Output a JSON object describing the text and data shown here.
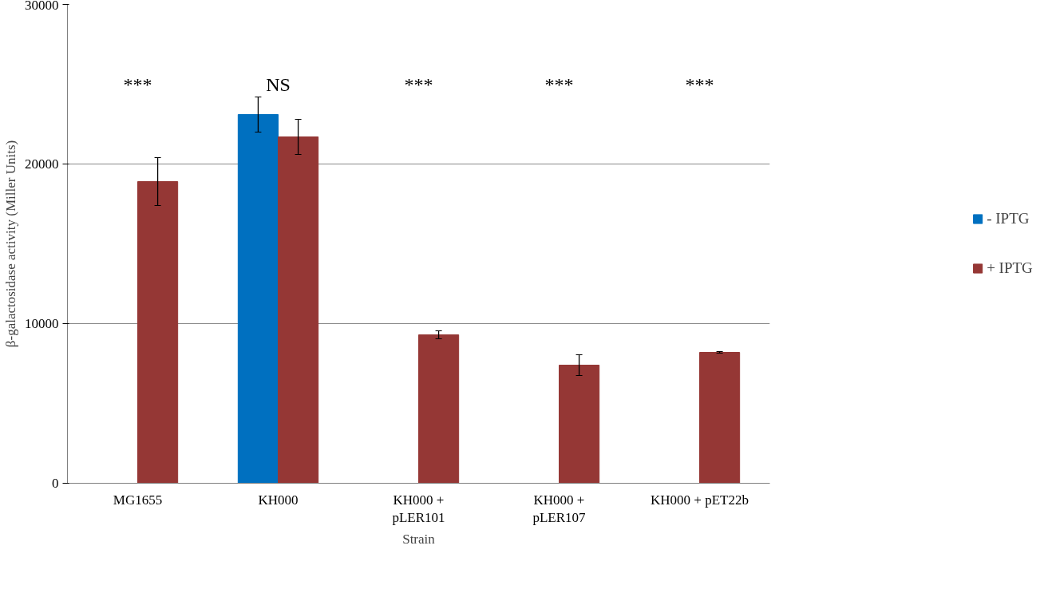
{
  "chart_data": {
    "type": "bar",
    "xlabel": "Strain",
    "ylabel": "β-galactosidase activity (Miller Units)",
    "categories": [
      "MG1655",
      "KH000",
      "KH000 + pLER101",
      "KH000 + pLER107",
      "KH000 + pET22b"
    ],
    "series": [
      {
        "name": "- IPTG",
        "color": "#0070c0",
        "values": [
          0,
          23100,
          0,
          0,
          0
        ],
        "errors": [
          null,
          1100,
          null,
          null,
          null
        ]
      },
      {
        "name": "+ IPTG",
        "color": "#953735",
        "values": [
          18900,
          21700,
          9300,
          7400,
          8200
        ],
        "errors": [
          1500,
          1100,
          250,
          650,
          50
        ]
      }
    ],
    "ylim": [
      0,
      30000
    ],
    "yticks": [
      0,
      10000,
      20000,
      30000
    ],
    "grid": "y",
    "legend": "right",
    "annotations": [
      "***",
      "NS",
      "***",
      "***",
      "***"
    ]
  }
}
